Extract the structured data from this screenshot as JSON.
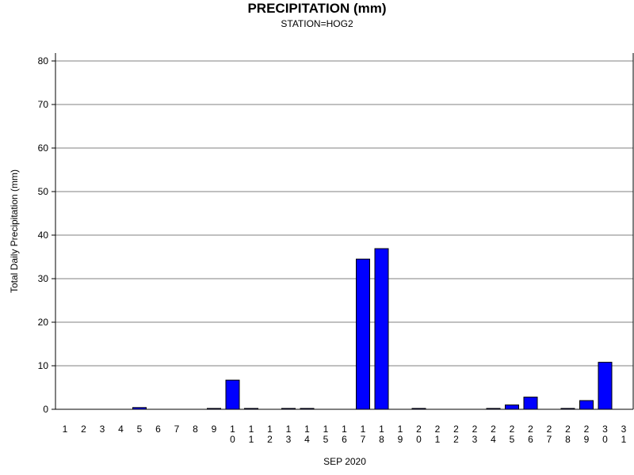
{
  "chart_data": {
    "type": "bar",
    "title": "PRECIPITATION (mm)",
    "subtitle": "STATION=HOG2",
    "xlabel": "SEP 2020",
    "ylabel": "Total Daily Precipitation (mm)",
    "ylim": [
      0,
      80
    ],
    "yticks": [
      0,
      10,
      20,
      30,
      40,
      50,
      60,
      70,
      80
    ],
    "grid": true,
    "categories": [
      "1",
      "2",
      "3",
      "4",
      "5",
      "6",
      "7",
      "8",
      "9",
      "10",
      "11",
      "12",
      "13",
      "14",
      "15",
      "16",
      "17",
      "18",
      "19",
      "20",
      "21",
      "22",
      "23",
      "24",
      "25",
      "26",
      "27",
      "28",
      "29",
      "30",
      "31"
    ],
    "values": [
      0,
      0,
      0,
      0,
      0.4,
      0,
      0,
      0,
      0.2,
      6.7,
      0.2,
      0,
      0.2,
      0.2,
      0,
      0,
      34.5,
      36.9,
      0,
      0.2,
      0,
      0,
      0,
      0.2,
      1.0,
      2.8,
      0,
      0.2,
      2.0,
      10.8,
      null
    ],
    "bar_color": "#0000ff"
  }
}
